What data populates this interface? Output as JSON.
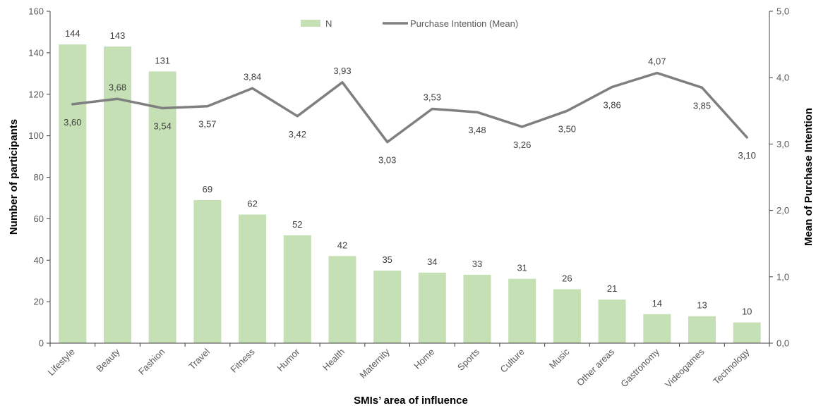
{
  "chart_data": {
    "type": "bar",
    "categories": [
      "Lifestyle",
      "Beauty",
      "Fashion",
      "Travel",
      "Fitness",
      "Humor",
      "Health",
      "Maternity",
      "Home",
      "Sports",
      "Culture",
      "Music",
      "Other areas",
      "Gastronomy",
      "Videogames",
      "Technology"
    ],
    "series": [
      {
        "name": "N",
        "type": "bar",
        "axis": "left",
        "values": [
          144,
          143,
          131,
          69,
          62,
          52,
          42,
          35,
          34,
          33,
          31,
          26,
          21,
          14,
          13,
          10
        ],
        "labels": [
          "144",
          "143",
          "131",
          "69",
          "62",
          "52",
          "42",
          "35",
          "34",
          "33",
          "31",
          "26",
          "21",
          "14",
          "13",
          "10"
        ]
      },
      {
        "name": "Purchase Intention (Mean)",
        "type": "line",
        "axis": "right",
        "values": [
          3.6,
          3.68,
          3.54,
          3.57,
          3.84,
          3.42,
          3.93,
          3.03,
          3.53,
          3.48,
          3.26,
          3.5,
          3.86,
          4.07,
          3.85,
          3.1
        ],
        "labels": [
          "3,60",
          "3,68",
          "3,54",
          "3,57",
          "3,84",
          "3,42",
          "3,93",
          "3,03",
          "3,53",
          "3,48",
          "3,26",
          "3,50",
          "3,86",
          "4,07",
          "3,85",
          "3,10"
        ]
      }
    ],
    "xlabel": "SMIs’ area of influence",
    "ylabel": "Number of participants",
    "y2label": "Mean of Purchase Intention",
    "ylim": [
      0,
      160
    ],
    "y2lim": [
      0,
      5
    ],
    "yticks": [
      0,
      20,
      40,
      60,
      80,
      100,
      120,
      140,
      160
    ],
    "y2ticks": [
      "0,0",
      "1,0",
      "2,0",
      "3,0",
      "4,0",
      "5,0"
    ],
    "legend_position": "top-center",
    "grid": false,
    "colors": {
      "bar": "#c5e0b4",
      "line": "#7f7f7f",
      "axis": "#404040"
    }
  }
}
